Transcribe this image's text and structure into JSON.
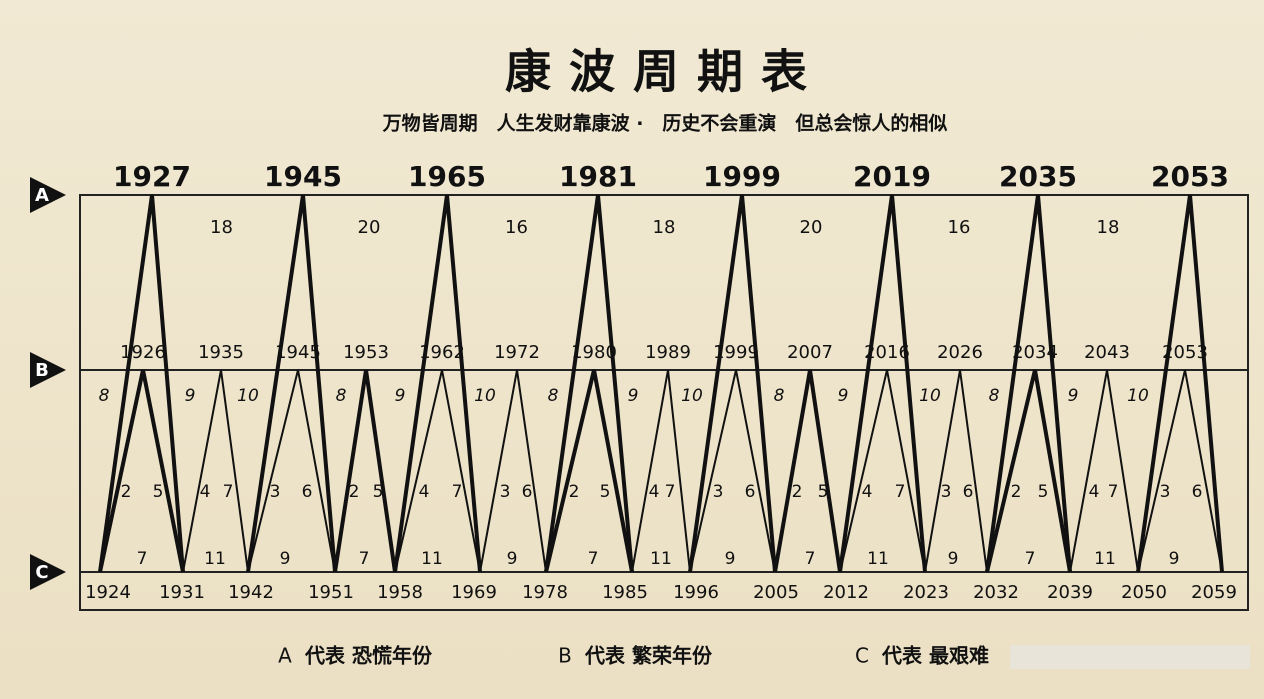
{
  "title": "康波周期表",
  "subtitle": "万物皆周期　人生发财靠康波 ·　历史不会重演　但总会惊人的相似",
  "row_labels": [
    "A",
    "B",
    "C"
  ],
  "a_years": [
    1927,
    1945,
    1965,
    1981,
    1999,
    2019,
    2035,
    2053
  ],
  "a_intervals": [
    18,
    20,
    16,
    18,
    20,
    16,
    18
  ],
  "b_years": [
    1926,
    1935,
    1945,
    1953,
    1962,
    1972,
    1980,
    1989,
    1999,
    2007,
    2016,
    2026,
    2034,
    2043,
    2053
  ],
  "c_years": [
    1924,
    1931,
    1942,
    1951,
    1958,
    1969,
    1978,
    1985,
    1996,
    2005,
    2012,
    2023,
    2032,
    2039,
    2050,
    2059
  ],
  "upper_labels": [
    8,
    9,
    10,
    8,
    9,
    10,
    8,
    9,
    10,
    8,
    9,
    10,
    8,
    9,
    10
  ],
  "middle_labels": [
    [
      2,
      5
    ],
    [
      4,
      7
    ],
    [
      3,
      6
    ],
    [
      2,
      5
    ],
    [
      4,
      7
    ],
    [
      3,
      6
    ],
    [
      2,
      5
    ],
    [
      4,
      7
    ],
    [
      3,
      6
    ],
    [
      2,
      5
    ],
    [
      4,
      7
    ],
    [
      3,
      6
    ],
    [
      2,
      5
    ],
    [
      4,
      7
    ],
    [
      3,
      6
    ]
  ],
  "bottom_labels": [
    7,
    11,
    9,
    7,
    11,
    9,
    7,
    11,
    9,
    7,
    11,
    9,
    7,
    11,
    9
  ],
  "legend": [
    {
      "key": "A",
      "text": "代表 恐慌年份"
    },
    {
      "key": "B",
      "text": "代表 繁荣年份"
    },
    {
      "key": "C",
      "text": "代表 最艰难"
    }
  ]
}
